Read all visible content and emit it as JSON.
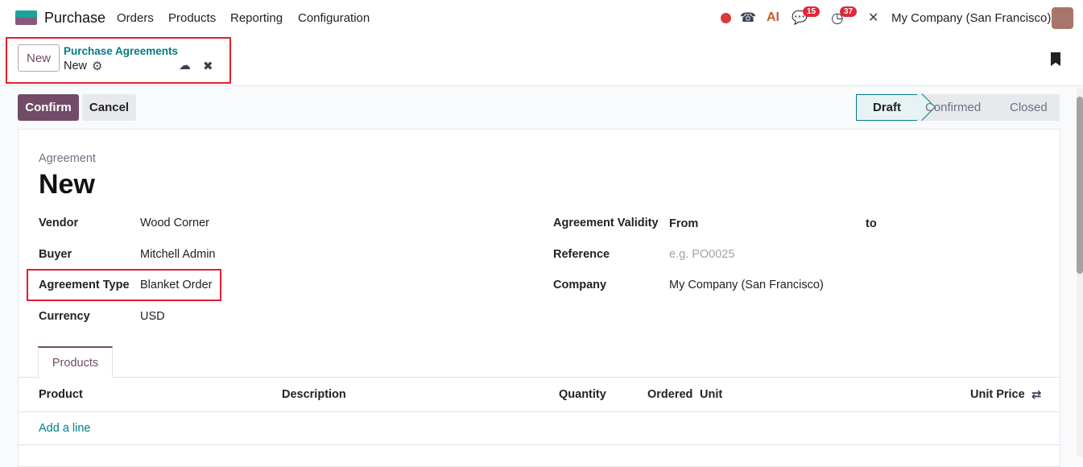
{
  "navbar": {
    "app": "Purchase",
    "menu": [
      "Orders",
      "Products",
      "Reporting",
      "Configuration"
    ],
    "messages_count": "15",
    "activities_count": "37",
    "company": "My Company (San Francisco)",
    "ai_label": "AI"
  },
  "control": {
    "new_label": "New",
    "breadcrumb_parent": "Purchase Agreements",
    "breadcrumb_current": "New"
  },
  "actions": {
    "confirm": "Confirm",
    "cancel": "Cancel"
  },
  "status": {
    "steps": [
      "Draft",
      "Confirmed",
      "Closed"
    ],
    "active": "Draft"
  },
  "form": {
    "kind": "Agreement",
    "title": "New",
    "left": [
      {
        "label": "Vendor",
        "value": "Wood Corner"
      },
      {
        "label": "Buyer",
        "value": "Mitchell Admin"
      },
      {
        "label": "Agreement Type",
        "value": "Blanket Order"
      },
      {
        "label": "Currency",
        "value": "USD"
      }
    ],
    "validity_label": "Agreement Validity",
    "from_label": "From",
    "to_label": "to",
    "reference_label": "Reference",
    "reference_placeholder": "e.g. PO0025",
    "company_label": "Company",
    "company_value": "My Company (San Francisco)"
  },
  "tabs": [
    "Products"
  ],
  "table": {
    "headers": [
      "Product",
      "Description",
      "Quantity",
      "Ordered",
      "Unit",
      "Unit Price"
    ],
    "add_line": "Add a line"
  }
}
